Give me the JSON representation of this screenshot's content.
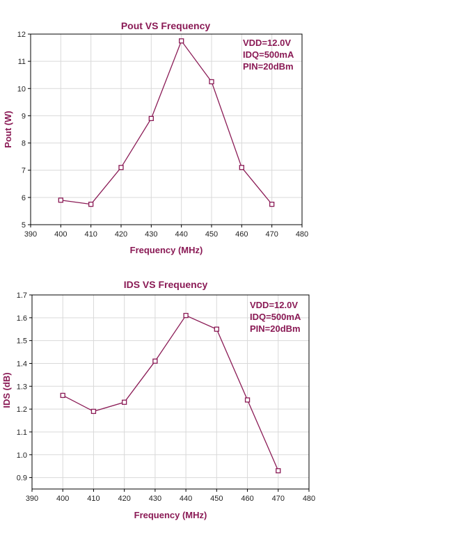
{
  "colors": {
    "series": "#8a1a55",
    "title": "#8a1a55",
    "grid": "#d9d9d9",
    "axis": "#000000",
    "tick_text": "#222222"
  },
  "chart_data": [
    {
      "type": "line",
      "title": "Pout VS Frequency",
      "xlabel": "Frequency (MHz)",
      "ylabel": "Pout (W)",
      "xlim": [
        390,
        480
      ],
      "ylim": [
        5,
        12
      ],
      "x_ticks": [
        390,
        400,
        410,
        420,
        430,
        440,
        450,
        460,
        470,
        480
      ],
      "y_ticks": [
        5,
        6,
        7,
        8,
        9,
        10,
        11,
        12
      ],
      "x_tick_labels": [
        "390",
        "400",
        "410",
        "420",
        "430",
        "440",
        "450",
        "460",
        "470",
        "480"
      ],
      "y_tick_labels": [
        "5",
        "6",
        "7",
        "8",
        "9",
        "10",
        "11",
        "12"
      ],
      "grid": true,
      "series": [
        {
          "x": [
            400,
            410,
            420,
            430,
            440,
            450,
            460,
            470
          ],
          "values": [
            5.9,
            5.75,
            7.1,
            8.9,
            11.75,
            10.25,
            7.1,
            5.75
          ],
          "marker": "open-square"
        }
      ],
      "annotations": [
        "VDD=12.0V",
        "IDQ=500mA",
        "PIN=20dBm"
      ],
      "annotation_placement": "top-right"
    },
    {
      "type": "line",
      "title": "IDS VS Frequency",
      "xlabel": "Frequency (MHz)",
      "ylabel": "IDS (dB)",
      "xlim": [
        390,
        480
      ],
      "ylim": [
        0.85,
        1.7
      ],
      "x_ticks": [
        390,
        400,
        410,
        420,
        430,
        440,
        450,
        460,
        470,
        480
      ],
      "y_ticks": [
        0.9,
        1.0,
        1.1,
        1.2,
        1.3,
        1.4,
        1.5,
        1.6,
        1.7
      ],
      "x_tick_labels": [
        "390",
        "400",
        "410",
        "420",
        "430",
        "440",
        "450",
        "460",
        "470",
        "480"
      ],
      "y_tick_labels": [
        "0.9",
        "1.0",
        "1.1",
        "1.2",
        "1.3",
        "1.4",
        "1.5",
        "1.6",
        "1.7"
      ],
      "grid": true,
      "series": [
        {
          "x": [
            400,
            410,
            420,
            430,
            440,
            450,
            460,
            470
          ],
          "values": [
            1.26,
            1.19,
            1.23,
            1.41,
            1.61,
            1.55,
            1.24,
            0.93
          ],
          "marker": "open-square"
        }
      ],
      "annotations": [
        "VDD=12.0V",
        "IDQ=500mA",
        "PIN=20dBm"
      ],
      "annotation_placement": "top-right"
    }
  ]
}
